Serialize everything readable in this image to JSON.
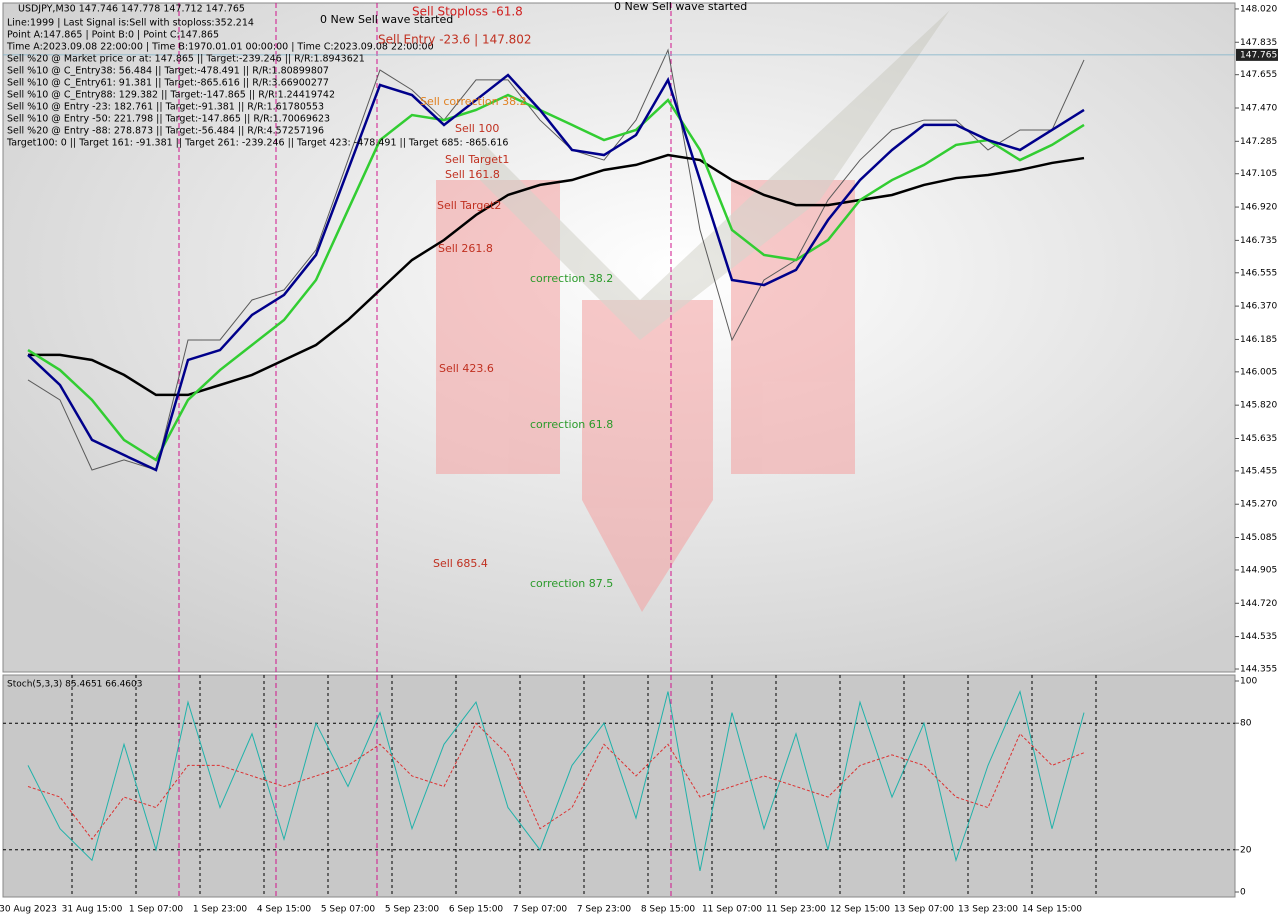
{
  "chart_data": [
    {
      "type": "line",
      "title": "USDJPY,M30  147.746 147.778 147.712 147.765",
      "info_lines": [
        "Line:1999 | Last Signal is:Sell with stoploss:352.214",
        "Point A:147.865 | Point B:0 | Point C:147.865",
        "Time A:2023.09.08 22:00:00 | Time B:1970.01.01 00:00:00 | Time C:2023.09.08 22:00:00",
        "Sell %20 @ Market price or at: 147.865 || Target:-239.246 || R/R:1.8943621",
        "Sell %10 @ C_Entry38: 56.484 || Target:-478.491 || R/R:1.80899807",
        "Sell %10 @ C_Entry61: 91.381 || Target:-865.616 || R/R:3.66900277",
        "Sell %10 @ C_Entry88: 129.382 || Target:-147.865 || R/R:1.24419742",
        "Sell %10 @ Entry -23: 182.761 || Target:-91.381 || R/R:1.61780553",
        "Sell %10 @ Entry -50: 221.798 || Target:-147.865 || R/R:1.70069623",
        "Sell %20 @ Entry -88: 278.873 || Target:-56.484 || R/R:4.57257196",
        "Target100: 0 || Target 161: -91.381 || Target 261: -239.246 || Target 423: -478.491 || Target 685: -865.616"
      ],
      "annotations": [
        "Sell Stoploss -61.8",
        "Sell Entry -23.6 | 147.802",
        "0 New Sell wave started",
        "0 New Sell wave started",
        "Sell correction 38.2",
        "Sell 100",
        "Sell Target1",
        "Sell 161.8",
        "Sell Target2",
        "Sell 261.8",
        "Sell 423.6",
        "Sell 685.4",
        "correction 38.2",
        "correction 61.8",
        "correction 87.5"
      ],
      "last_price": 147.765,
      "ylim": [
        144.344,
        148.053
      ],
      "yticks": [
        {
          "value": 148.02,
          "label": "148.020"
        },
        147.835,
        147.655,
        {
          "value": 147.47,
          "label": "147.470"
        },
        147.285,
        147.105,
        {
          "value": 146.92,
          "label": "146.920"
        },
        146.735,
        146.555,
        {
          "value": 146.37,
          "label": "146.370"
        },
        146.185,
        146.005,
        {
          "value": 145.82,
          "label": "145.820"
        },
        145.635,
        145.455,
        {
          "value": 145.27,
          "label": "145.270"
        },
        145.085,
        144.905,
        {
          "value": 144.72,
          "label": "144.720"
        },
        144.535,
        144.355
      ],
      "series": [
        {
          "color": "#5a5a5a",
          "values": [
            145.96,
            145.849,
            145.46,
            145.516,
            145.46,
            146.182,
            146.182,
            146.404,
            146.46,
            146.682,
            147.181,
            147.681,
            147.57,
            147.403,
            147.626,
            147.626,
            147.403,
            147.237,
            147.181,
            147.403,
            147.792,
            146.793,
            146.182,
            146.515,
            146.626,
            146.959,
            147.181,
            147.348,
            147.403,
            147.403,
            147.237,
            147.348,
            147.348,
            147.737
          ]
        },
        {
          "color": "#000000",
          "values": [
            146.099,
            146.099,
            146.071,
            145.988,
            145.877,
            145.877,
            145.932,
            145.988,
            146.071,
            146.154,
            146.293,
            146.46,
            146.626,
            146.737,
            146.876,
            146.987,
            147.043,
            147.07,
            147.126,
            147.154,
            147.209,
            147.181,
            147.07,
            146.987,
            146.931,
            146.931,
            146.959,
            146.987,
            147.043,
            147.081,
            147.098,
            147.126,
            147.165,
            147.192
          ]
        },
        {
          "color": "#32cd32",
          "values": [
            146.126,
            146.015,
            145.849,
            145.627,
            145.516,
            145.849,
            146.015,
            146.154,
            146.293,
            146.515,
            146.904,
            147.292,
            147.431,
            147.403,
            147.459,
            147.542,
            147.459,
            147.376,
            147.292,
            147.348,
            147.514,
            147.237,
            146.793,
            146.654,
            146.626,
            146.737,
            146.959,
            147.07,
            147.154,
            147.265,
            147.292,
            147.181,
            147.265,
            147.376
          ]
        },
        {
          "color": "#00008b",
          "values": [
            146.099,
            145.932,
            145.627,
            145.543,
            145.46,
            146.071,
            146.126,
            146.321,
            146.432,
            146.654,
            147.126,
            147.598,
            147.542,
            147.376,
            147.514,
            147.653,
            147.459,
            147.237,
            147.209,
            147.32,
            147.626,
            147.07,
            146.515,
            146.487,
            146.571,
            146.848,
            147.07,
            147.237,
            147.376,
            147.376,
            147.292,
            147.237,
            147.348,
            147.459
          ]
        }
      ]
    },
    {
      "type": "line",
      "title": "Stoch(5,3,3) 85.4651 66.4603",
      "categories": [
        "30 Aug 2023",
        null,
        "31 Aug 15:00",
        null,
        "1 Sep 07:00",
        null,
        "1 Sep 23:00",
        null,
        "4 Sep 15:00",
        null,
        "5 Sep 07:00",
        null,
        "5 Sep 23:00",
        null,
        "6 Sep 15:00",
        null,
        "7 Sep 07:00",
        null,
        "7 Sep 23:00",
        null,
        "8 Sep 15:00",
        null,
        "11 Sep 07:00",
        null,
        "11 Sep 23:00",
        null,
        "12 Sep 15:00",
        null,
        "13 Sep 07:00",
        null,
        "13 Sep 23:00",
        null,
        "14 Sep 15:00",
        null
      ],
      "ylim": [
        0,
        100
      ],
      "yticks": [
        0,
        20,
        80,
        100
      ],
      "series": [
        {
          "color": "#20b2aa",
          "values": [
            60,
            30,
            15,
            70,
            20,
            90,
            40,
            75,
            25,
            80,
            50,
            85,
            30,
            70,
            90,
            40,
            20,
            60,
            80,
            35,
            95,
            10,
            85,
            30,
            75,
            20,
            90,
            45,
            80,
            15,
            60,
            95,
            30,
            85
          ]
        },
        {
          "color": "#dc3232",
          "values": [
            50,
            45,
            25,
            45,
            40,
            60,
            60,
            55,
            50,
            55,
            60,
            70,
            55,
            50,
            80,
            65,
            30,
            40,
            70,
            55,
            70,
            45,
            50,
            55,
            50,
            45,
            60,
            65,
            60,
            45,
            40,
            75,
            60,
            66
          ]
        }
      ]
    }
  ]
}
